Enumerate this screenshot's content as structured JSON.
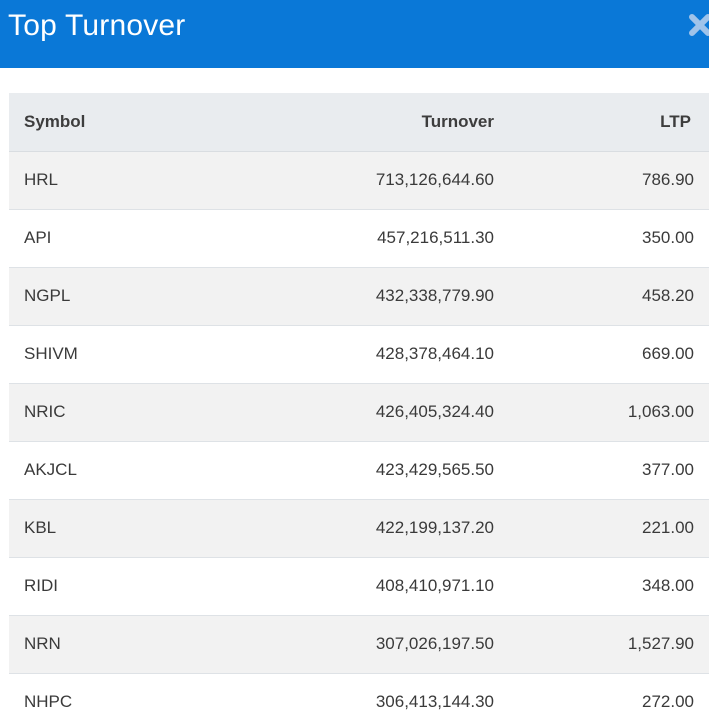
{
  "dialog": {
    "title": "Top Turnover",
    "close_icon": "close-icon"
  },
  "colors": {
    "header_bg": "#0a78d7",
    "header_text": "#ffffff",
    "table_header_bg": "#e9ecef",
    "row_stripe_bg": "#f2f2f2"
  },
  "table": {
    "columns": [
      "Symbol",
      "Turnover",
      "LTP"
    ],
    "rows": [
      {
        "symbol": "HRL",
        "turnover": "713,126,644.60",
        "ltp": "786.90"
      },
      {
        "symbol": "API",
        "turnover": "457,216,511.30",
        "ltp": "350.00"
      },
      {
        "symbol": "NGPL",
        "turnover": "432,338,779.90",
        "ltp": "458.20"
      },
      {
        "symbol": "SHIVM",
        "turnover": "428,378,464.10",
        "ltp": "669.00"
      },
      {
        "symbol": "NRIC",
        "turnover": "426,405,324.40",
        "ltp": "1,063.00"
      },
      {
        "symbol": "AKJCL",
        "turnover": "423,429,565.50",
        "ltp": "377.00"
      },
      {
        "symbol": "KBL",
        "turnover": "422,199,137.20",
        "ltp": "221.00"
      },
      {
        "symbol": "RIDI",
        "turnover": "408,410,971.10",
        "ltp": "348.00"
      },
      {
        "symbol": "NRN",
        "turnover": "307,026,197.50",
        "ltp": "1,527.90"
      },
      {
        "symbol": "NHPC",
        "turnover": "306,413,144.30",
        "ltp": "272.00"
      }
    ]
  }
}
